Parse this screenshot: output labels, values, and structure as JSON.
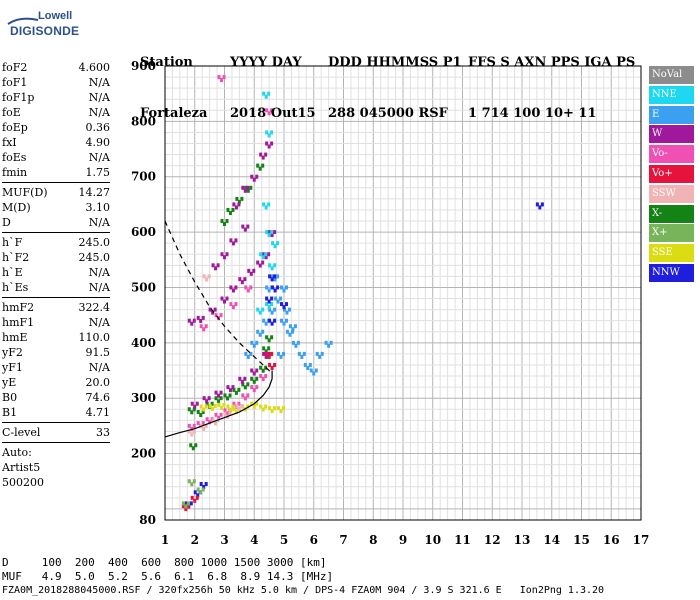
{
  "logo": {
    "line1": "Lowell",
    "line2": "DIGISONDE"
  },
  "header": {
    "labels": [
      "Station",
      "YYYY DAY",
      "DDD HHMMSS P1",
      "FFS S AXN PPS IGA PS"
    ],
    "values": [
      "Fortaleza",
      "2018 Out15",
      "288 045000 RSF",
      "1 714 100 10+ 11"
    ]
  },
  "params": [
    {
      "name": "foF2",
      "value": "4.600"
    },
    {
      "name": "foF1",
      "value": "N/A"
    },
    {
      "name": "foF1p",
      "value": "N/A"
    },
    {
      "name": "foE",
      "value": "N/A"
    },
    {
      "name": "foEp",
      "value": "0.36"
    },
    {
      "name": "fxI",
      "value": "4.90"
    },
    {
      "name": "foEs",
      "value": "N/A"
    },
    {
      "name": "fmin",
      "value": "1.75"
    },
    {
      "sep": true
    },
    {
      "name": "MUF(D)",
      "value": "14.27"
    },
    {
      "name": "M(D)",
      "value": "3.10"
    },
    {
      "name": "D",
      "value": "N/A"
    },
    {
      "sep": true
    },
    {
      "name": "h`F",
      "value": "245.0"
    },
    {
      "name": "h`F2",
      "value": "245.0"
    },
    {
      "name": "h`E",
      "value": "N/A"
    },
    {
      "name": "h`Es",
      "value": "N/A"
    },
    {
      "sep": true
    },
    {
      "name": "hmF2",
      "value": "322.4"
    },
    {
      "name": "hmF1",
      "value": "N/A"
    },
    {
      "name": "hmE",
      "value": "110.0"
    },
    {
      "name": "yF2",
      "value": "91.5"
    },
    {
      "name": "yF1",
      "value": "N/A"
    },
    {
      "name": "yE",
      "value": "20.0"
    },
    {
      "name": "B0",
      "value": "74.6"
    },
    {
      "name": "B1",
      "value": "4.71"
    },
    {
      "sep": true
    },
    {
      "name": "C-level",
      "value": "33"
    },
    {
      "sep": true
    },
    {
      "name": "Auto:",
      "value": ""
    },
    {
      "name": "Artist5",
      "value": ""
    },
    {
      "name": "500200",
      "value": ""
    }
  ],
  "legend": [
    {
      "label": "NoVal",
      "color": "#8c8c8c"
    },
    {
      "label": "NNE",
      "color": "#1ed7f0"
    },
    {
      "label": "E",
      "color": "#3ca0f0"
    },
    {
      "label": "W",
      "color": "#a0189c"
    },
    {
      "label": "Vo-",
      "color": "#f050b4"
    },
    {
      "label": "Vo+",
      "color": "#e6143c"
    },
    {
      "label": "SSW",
      "color": "#f0b4b4"
    },
    {
      "label": "X-",
      "color": "#148214"
    },
    {
      "label": "X+",
      "color": "#78b45a"
    },
    {
      "label": "SSE",
      "color": "#dcdc14"
    },
    {
      "label": "NNW",
      "color": "#1e1edc"
    }
  ],
  "footer": {
    "line1": "D     100  200  400  600  800 1000 1500 3000 [km]",
    "line2": "MUF   4.9  5.0  5.2  5.6  6.1  6.8  8.9 14.3 [MHz]",
    "line3": "FZA0M_2018288045000.RSF / 320fx256h 50 kHz 5.0 km / DPS-4 FZA0M 904 / 3.9 S 321.6 E   Ion2Png 1.3.20"
  },
  "chart_data": {
    "type": "scatter",
    "title": "",
    "xlabel": "",
    "ylabel": "",
    "xlim": [
      1,
      17
    ],
    "ylim": [
      80,
      900
    ],
    "x_ticks": [
      1,
      2,
      3,
      4,
      5,
      6,
      7,
      8,
      9,
      10,
      11,
      12,
      13,
      14,
      15,
      16,
      17
    ],
    "y_ticks": [
      80,
      200,
      300,
      400,
      500,
      600,
      700,
      800,
      900
    ],
    "grid": true,
    "series": [
      {
        "name": "X-",
        "color": "#148214",
        "points": [
          [
            1.9,
            280
          ],
          [
            2.2,
            275
          ],
          [
            2.5,
            290
          ],
          [
            2.8,
            300
          ],
          [
            3.1,
            305
          ],
          [
            3.4,
            315
          ],
          [
            3.7,
            325
          ],
          [
            4.0,
            335
          ],
          [
            4.3,
            355
          ],
          [
            4.5,
            380
          ],
          [
            4.4,
            390
          ],
          [
            4.5,
            410
          ],
          [
            3.0,
            620
          ],
          [
            3.2,
            640
          ],
          [
            3.5,
            660
          ],
          [
            3.8,
            680
          ],
          [
            4.2,
            720
          ],
          [
            1.95,
            215
          ]
        ]
      },
      {
        "name": "W",
        "color": "#a0189c",
        "points": [
          [
            1.9,
            440
          ],
          [
            2.2,
            445
          ],
          [
            2.6,
            460
          ],
          [
            3.0,
            480
          ],
          [
            3.3,
            500
          ],
          [
            3.6,
            515
          ],
          [
            3.9,
            530
          ],
          [
            4.2,
            545
          ],
          [
            4.4,
            560
          ],
          [
            4.6,
            600
          ],
          [
            2.0,
            290
          ],
          [
            2.4,
            300
          ],
          [
            2.8,
            310
          ],
          [
            3.2,
            320
          ],
          [
            3.6,
            335
          ],
          [
            4.0,
            350
          ],
          [
            4.4,
            380
          ],
          [
            3.4,
            650
          ],
          [
            3.7,
            680
          ],
          [
            4.0,
            700
          ],
          [
            4.3,
            740
          ],
          [
            4.5,
            760
          ],
          [
            2.7,
            540
          ],
          [
            3.0,
            560
          ],
          [
            3.3,
            585
          ],
          [
            3.7,
            610
          ]
        ]
      },
      {
        "name": "Vo-",
        "color": "#f050b4",
        "points": [
          [
            1.9,
            250
          ],
          [
            2.2,
            255
          ],
          [
            2.5,
            262
          ],
          [
            2.8,
            270
          ],
          [
            3.1,
            278
          ],
          [
            3.4,
            290
          ],
          [
            3.7,
            305
          ],
          [
            4.0,
            320
          ],
          [
            4.3,
            340
          ],
          [
            2.3,
            430
          ],
          [
            2.8,
            450
          ],
          [
            3.3,
            470
          ],
          [
            3.8,
            500
          ],
          [
            2.9,
            880
          ],
          [
            4.5,
            820
          ]
        ]
      },
      {
        "name": "E",
        "color": "#3ca0f0",
        "points": [
          [
            3.8,
            380
          ],
          [
            4.0,
            400
          ],
          [
            4.2,
            420
          ],
          [
            4.4,
            440
          ],
          [
            4.6,
            460
          ],
          [
            4.8,
            480
          ],
          [
            5.0,
            440
          ],
          [
            5.2,
            420
          ],
          [
            5.4,
            400
          ],
          [
            5.6,
            380
          ],
          [
            5.8,
            360
          ],
          [
            6.0,
            350
          ],
          [
            6.2,
            380
          ],
          [
            6.5,
            400
          ],
          [
            4.6,
            360
          ],
          [
            4.9,
            380
          ],
          [
            5.1,
            460
          ],
          [
            5.3,
            430
          ],
          [
            4.5,
            500
          ],
          [
            4.7,
            520
          ],
          [
            5.0,
            500
          ]
        ]
      },
      {
        "name": "NNE",
        "color": "#1ed7f0",
        "points": [
          [
            4.3,
            560
          ],
          [
            4.5,
            600
          ],
          [
            4.4,
            650
          ],
          [
            4.6,
            540
          ],
          [
            4.7,
            580
          ],
          [
            4.2,
            460
          ],
          [
            4.5,
            470
          ],
          [
            4.4,
            850
          ],
          [
            4.5,
            780
          ]
        ]
      },
      {
        "name": "SSE",
        "color": "#dcdc14",
        "points": [
          [
            3.4,
            280
          ],
          [
            3.7,
            285
          ],
          [
            4.0,
            290
          ],
          [
            4.3,
            285
          ],
          [
            4.6,
            282
          ],
          [
            4.9,
            282
          ],
          [
            3.2,
            285
          ],
          [
            2.9,
            288
          ],
          [
            2.6,
            286
          ],
          [
            2.3,
            285
          ]
        ]
      },
      {
        "name": "NNW",
        "color": "#1e1edc",
        "points": [
          [
            4.6,
            520
          ],
          [
            4.7,
            500
          ],
          [
            4.5,
            480
          ],
          [
            5.0,
            470
          ],
          [
            4.6,
            440
          ],
          [
            2.1,
            130
          ],
          [
            2.3,
            145
          ],
          [
            1.8,
            110
          ],
          [
            13.6,
            650
          ]
        ]
      },
      {
        "name": "SSW",
        "color": "#f0b4b4",
        "points": [
          [
            1.9,
            240
          ],
          [
            2.3,
            250
          ],
          [
            2.7,
            260
          ],
          [
            3.1,
            272
          ],
          [
            3.5,
            286
          ],
          [
            2.4,
            520
          ]
        ]
      },
      {
        "name": "Vo+",
        "color": "#e6143c",
        "points": [
          [
            1.7,
            105
          ],
          [
            2.0,
            120
          ],
          [
            4.5,
            380
          ],
          [
            4.6,
            360
          ]
        ]
      },
      {
        "name": "X+",
        "color": "#78b45a",
        "points": [
          [
            1.7,
            110
          ],
          [
            2.2,
            135
          ],
          [
            1.9,
            150
          ]
        ]
      }
    ],
    "profile_line": [
      [
        1.0,
        230
      ],
      [
        1.5,
        238
      ],
      [
        2.0,
        245
      ],
      [
        2.5,
        255
      ],
      [
        3.0,
        265
      ],
      [
        3.5,
        275
      ],
      [
        4.0,
        290
      ],
      [
        4.3,
        305
      ],
      [
        4.5,
        320
      ],
      [
        4.6,
        335
      ],
      [
        4.6,
        350
      ]
    ],
    "dashed_line": [
      [
        1.0,
        620
      ],
      [
        1.5,
        560
      ],
      [
        2.0,
        510
      ],
      [
        2.5,
        465
      ],
      [
        3.0,
        430
      ],
      [
        3.5,
        400
      ],
      [
        4.0,
        375
      ],
      [
        4.3,
        360
      ],
      [
        4.6,
        345
      ]
    ]
  }
}
